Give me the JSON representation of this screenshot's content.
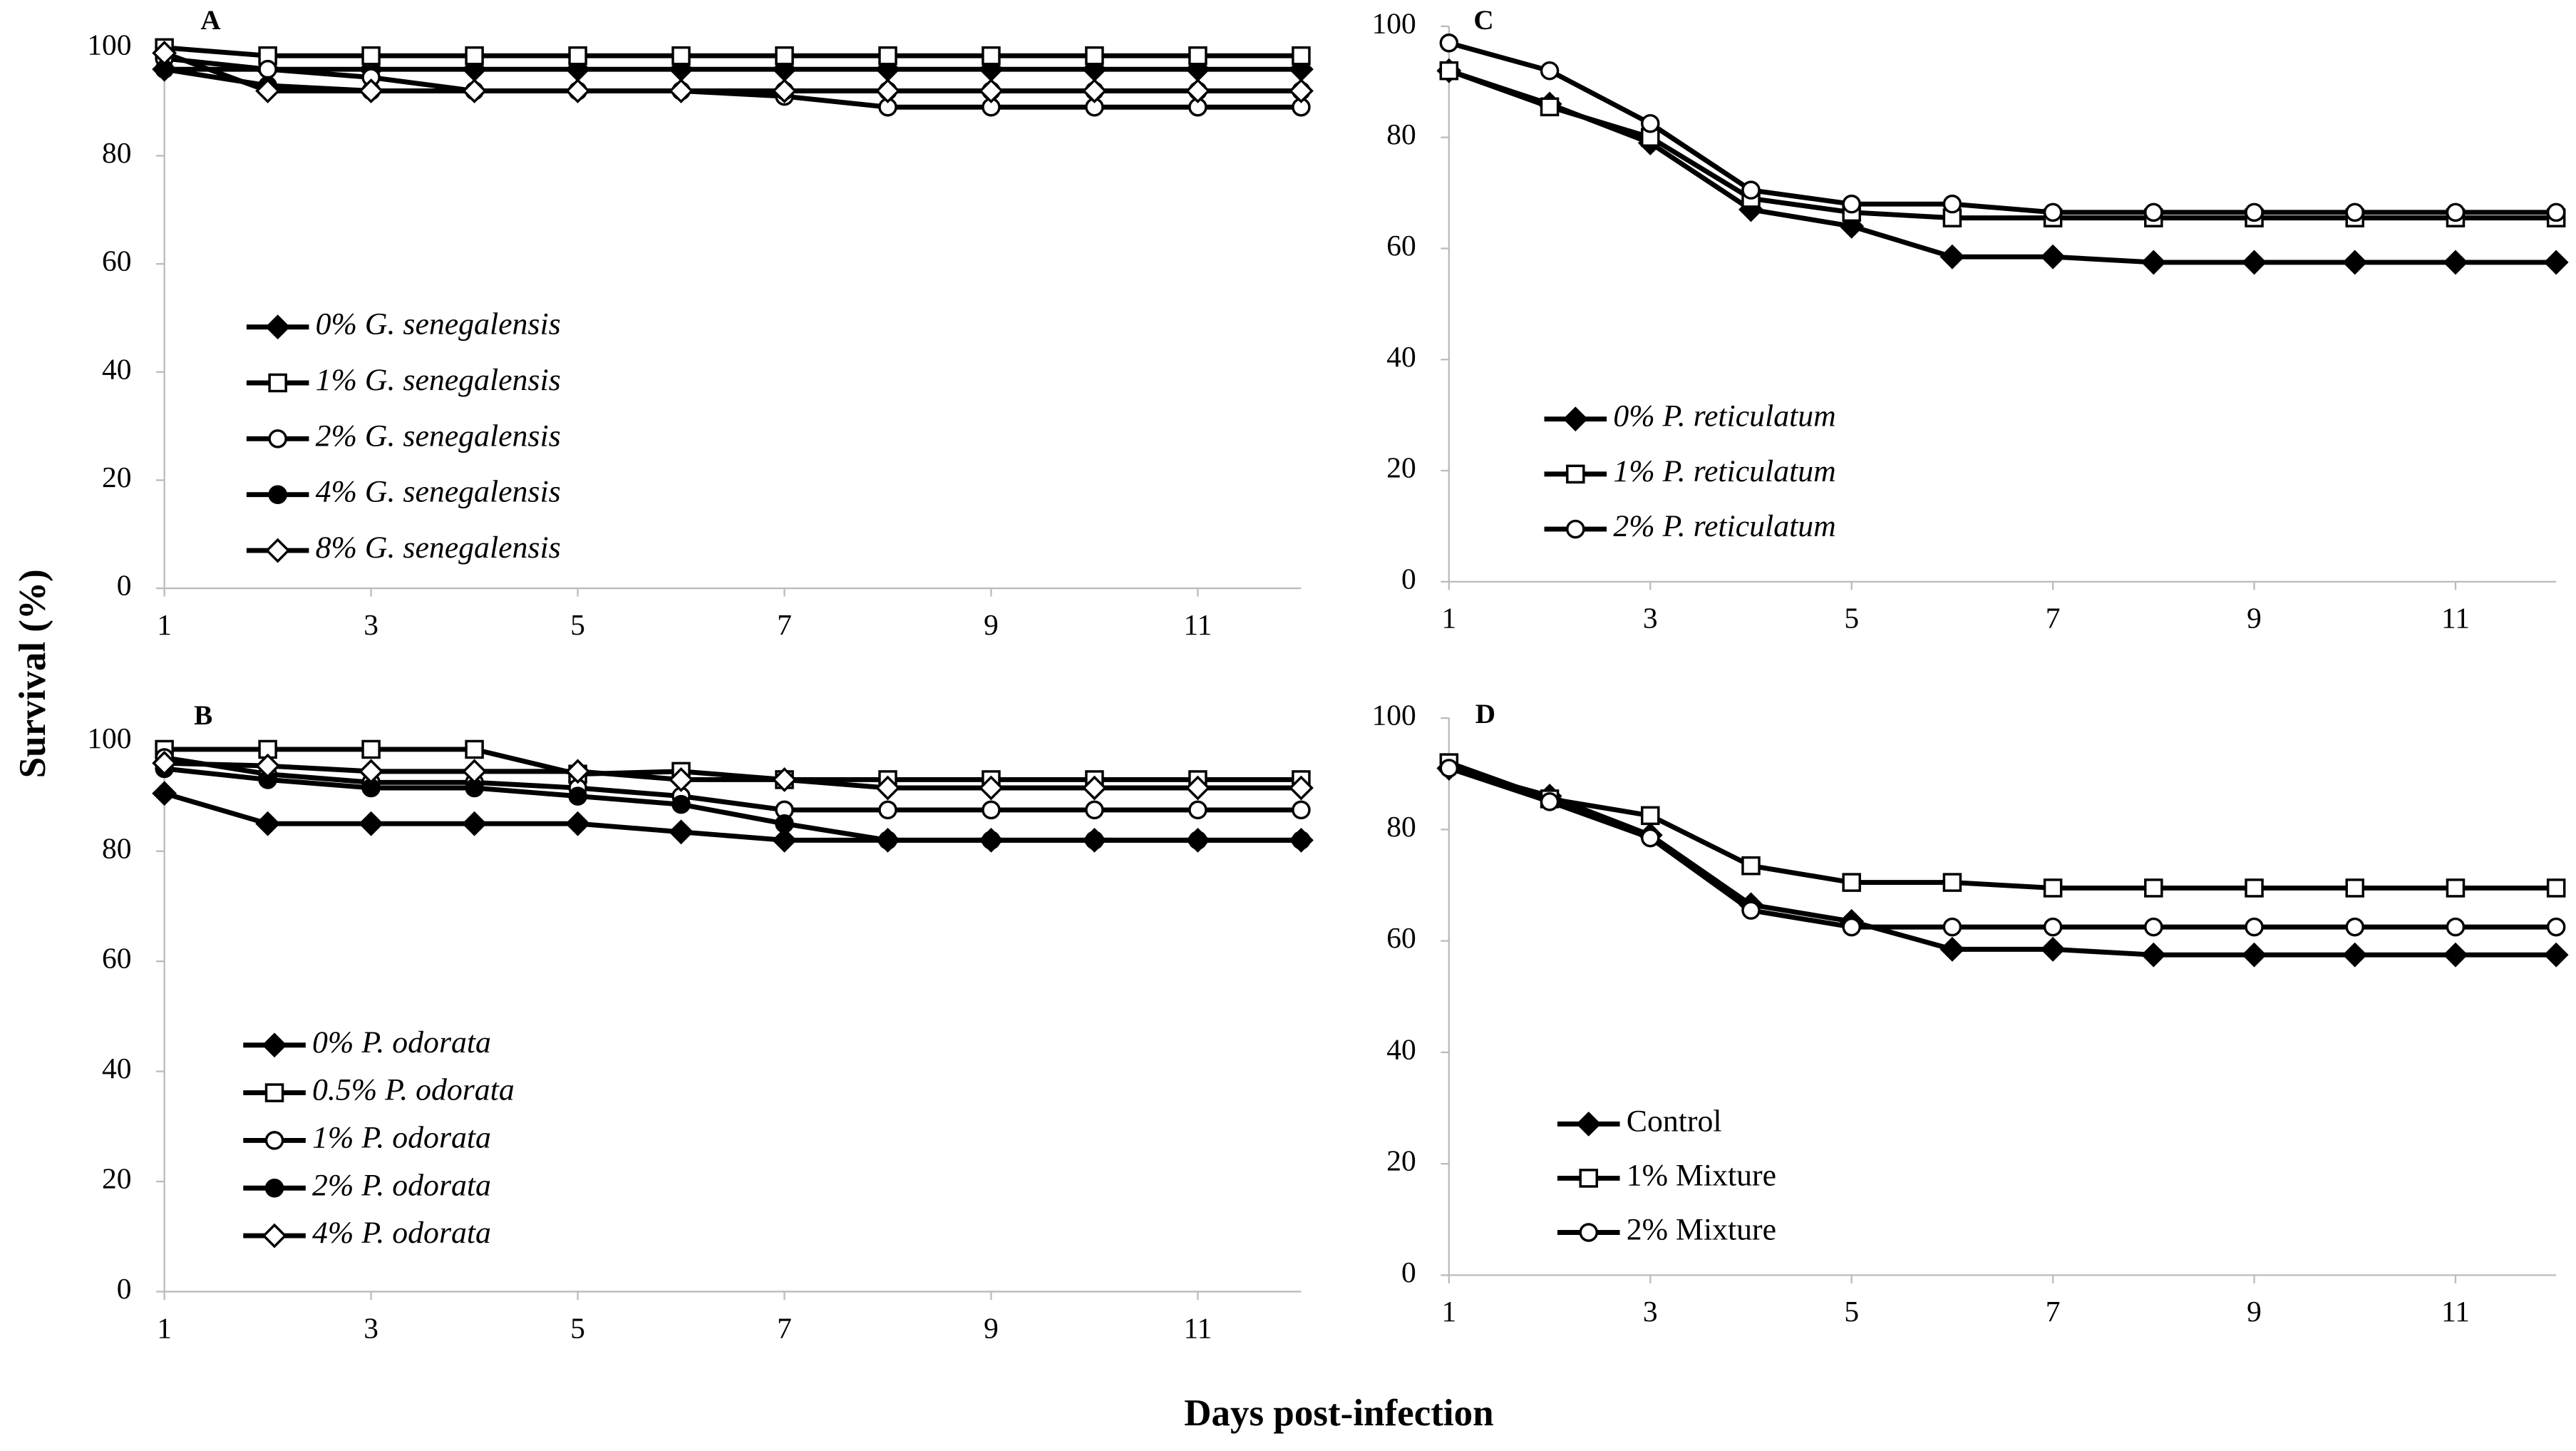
{
  "ylabel": "Survival (%)",
  "xlabel": "Days post-infection",
  "chart_data": [
    {
      "type": "line",
      "title": "A",
      "x": [
        1,
        2,
        3,
        4,
        5,
        6,
        7,
        8,
        9,
        10,
        11,
        12
      ],
      "xlim": [
        1,
        12
      ],
      "xticks": [
        1,
        3,
        5,
        7,
        9,
        11
      ],
      "ylim": [
        0,
        100
      ],
      "yticks": [
        0,
        20,
        40,
        60,
        80,
        100
      ],
      "grid": false,
      "legend_italic": true,
      "series": [
        {
          "name": "0% G. senegalensis",
          "color": "#000000",
          "marker": "filled-diamond",
          "values": [
            96,
            96,
            96,
            96,
            96,
            96,
            96,
            96,
            96,
            96,
            96,
            96
          ]
        },
        {
          "name": "1% G. senegalensis",
          "color": "#000000",
          "marker": "open-square",
          "values": [
            100,
            98.5,
            98.5,
            98.5,
            98.5,
            98.5,
            98.5,
            98.5,
            98.5,
            98.5,
            98.5,
            98.5
          ]
        },
        {
          "name": "2% G. senegalensis",
          "color": "#000000",
          "marker": "open-circle",
          "values": [
            98,
            96,
            94.5,
            92,
            92,
            92,
            91,
            89,
            89,
            89,
            89,
            89
          ]
        },
        {
          "name": "4% G. senegalensis",
          "color": "#000000",
          "marker": "filled-circle",
          "values": [
            96,
            93,
            92,
            92,
            92,
            92,
            92,
            92,
            92,
            92,
            92,
            92
          ]
        },
        {
          "name": "8% G. senegalensis",
          "color": "#000000",
          "marker": "open-diamond",
          "values": [
            99,
            92,
            92,
            92,
            92,
            92,
            92,
            92,
            92,
            92,
            92,
            92
          ]
        }
      ]
    },
    {
      "type": "line",
      "title": "B",
      "x": [
        1,
        2,
        3,
        4,
        5,
        6,
        7,
        8,
        9,
        10,
        11,
        12
      ],
      "xlim": [
        1,
        12
      ],
      "xticks": [
        1,
        3,
        5,
        7,
        9,
        11
      ],
      "ylim": [
        0,
        100
      ],
      "yticks": [
        0,
        20,
        40,
        60,
        80,
        100
      ],
      "grid": false,
      "legend_italic": true,
      "series": [
        {
          "name": "0% P. odorata",
          "color": "#000000",
          "marker": "filled-diamond",
          "values": [
            90.5,
            85,
            85,
            85,
            85,
            83.5,
            82,
            82,
            82,
            82,
            82,
            82
          ]
        },
        {
          "name": "0.5% P. odorata",
          "color": "#000000",
          "marker": "open-square",
          "values": [
            98.5,
            98.5,
            98.5,
            98.5,
            94,
            94.5,
            93,
            93,
            93,
            93,
            93,
            93
          ]
        },
        {
          "name": "1% P. odorata",
          "color": "#000000",
          "marker": "open-circle",
          "values": [
            97,
            94,
            92.5,
            92.5,
            91.5,
            90,
            87.5,
            87.5,
            87.5,
            87.5,
            87.5,
            87.5
          ]
        },
        {
          "name": "2% P. odorata",
          "color": "#000000",
          "marker": "filled-circle",
          "values": [
            95,
            93,
            91.5,
            91.5,
            90,
            88.5,
            85,
            82,
            82,
            82,
            82,
            82
          ]
        },
        {
          "name": "4% P. odorata",
          "color": "#000000",
          "marker": "open-diamond",
          "values": [
            96,
            95.5,
            94.5,
            94.5,
            94.5,
            93,
            93,
            91.5,
            91.5,
            91.5,
            91.5,
            91.5
          ]
        }
      ]
    },
    {
      "type": "line",
      "title": "C",
      "x": [
        1,
        2,
        3,
        4,
        5,
        6,
        7,
        8,
        9,
        10,
        11,
        12
      ],
      "xlim": [
        1,
        12
      ],
      "xticks": [
        1,
        3,
        5,
        7,
        9,
        11
      ],
      "ylim": [
        0,
        100
      ],
      "yticks": [
        0,
        20,
        40,
        60,
        80,
        100
      ],
      "grid": false,
      "legend_italic": true,
      "series": [
        {
          "name": "0% P. reticulatum",
          "color": "#000000",
          "marker": "filled-diamond",
          "values": [
            92,
            86,
            79,
            67,
            64,
            58.5,
            58.5,
            57.5,
            57.5,
            57.5,
            57.5,
            57.5
          ]
        },
        {
          "name": "1% P. reticulatum",
          "color": "#000000",
          "marker": "open-square",
          "values": [
            92,
            85.5,
            80,
            69,
            66.5,
            65.5,
            65.5,
            65.5,
            65.5,
            65.5,
            65.5,
            65.5
          ]
        },
        {
          "name": "2% P. reticulatum",
          "color": "#000000",
          "marker": "open-circle",
          "values": [
            97,
            92,
            82.5,
            70.5,
            68,
            68,
            66.5,
            66.5,
            66.5,
            66.5,
            66.5,
            66.5
          ]
        }
      ]
    },
    {
      "type": "line",
      "title": "D",
      "x": [
        1,
        2,
        3,
        4,
        5,
        6,
        7,
        8,
        9,
        10,
        11,
        12
      ],
      "xlim": [
        1,
        12
      ],
      "xticks": [
        1,
        3,
        5,
        7,
        9,
        11
      ],
      "ylim": [
        0,
        100
      ],
      "yticks": [
        0,
        20,
        40,
        60,
        80,
        100
      ],
      "grid": false,
      "legend_italic": false,
      "series": [
        {
          "name": "Control",
          "color": "#000000",
          "marker": "filled-diamond",
          "values": [
            91,
            86,
            79,
            66.5,
            63.5,
            58.5,
            58.5,
            57.5,
            57.5,
            57.5,
            57.5,
            57.5
          ]
        },
        {
          "name": "1% Mixture",
          "color": "#000000",
          "marker": "open-square",
          "values": [
            92,
            85.5,
            82.5,
            73.5,
            70.5,
            70.5,
            69.5,
            69.5,
            69.5,
            69.5,
            69.5,
            69.5
          ]
        },
        {
          "name": "2% Mixture",
          "color": "#000000",
          "marker": "open-circle",
          "values": [
            91,
            85,
            78.5,
            65.5,
            62.5,
            62.5,
            62.5,
            62.5,
            62.5,
            62.5,
            62.5,
            62.5
          ]
        }
      ]
    }
  ]
}
